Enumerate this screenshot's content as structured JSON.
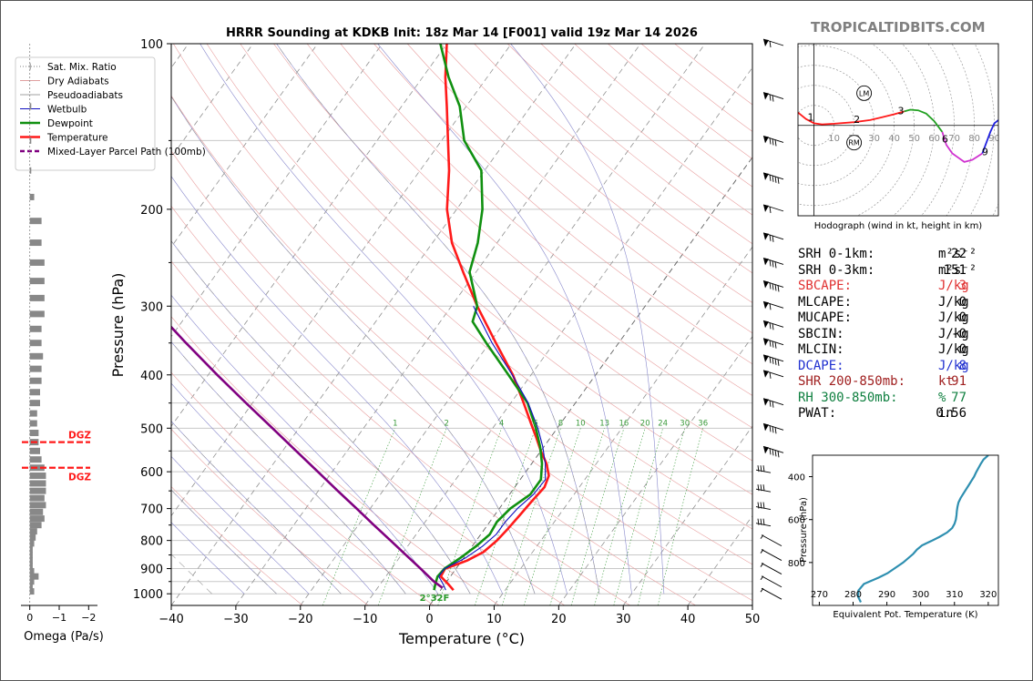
{
  "brand": "TROPICALTIDBITS.COM",
  "title": "HRRR Sounding at KDKB Init: 18z Mar 14 [F001] valid 19z Mar 14 2026",
  "stats": [
    {
      "label": "SRH 0-1km:",
      "value": "22",
      "unit": "m²s⁻²",
      "color": "#000000"
    },
    {
      "label": "SRH 0-3km:",
      "value": "151",
      "unit": "m²s⁻²",
      "color": "#000000"
    },
    {
      "label": "SBCAPE:",
      "value": "3",
      "unit": "J/kg",
      "color": "#e03030"
    },
    {
      "label": "MLCAPE:",
      "value": "0",
      "unit": "J/kg",
      "color": "#000000"
    },
    {
      "label": "MUCAPE:",
      "value": "0",
      "unit": "J/kg",
      "color": "#000000"
    },
    {
      "label": "SBCIN:",
      "value": "-0",
      "unit": "J/kg",
      "color": "#000000"
    },
    {
      "label": "MLCIN:",
      "value": "0",
      "unit": "J/kg",
      "color": "#000000"
    },
    {
      "label": "DCAPE:",
      "value": "8",
      "unit": "J/kg",
      "color": "#2030d0"
    },
    {
      "label": "SHR 200-850mb:",
      "value": "91",
      "unit": "kt",
      "color": "#a02020"
    },
    {
      "label": "RH 300-850mb:",
      "value": "77",
      "unit": "%",
      "color": "#108040"
    },
    {
      "label": "PWAT:",
      "value": "0.56",
      "unit": "in",
      "color": "#000000"
    }
  ],
  "chart_data": [
    {
      "type": "line",
      "name_id": "skewt",
      "title": "HRRR Sounding at KDKB Init: 18z Mar 14 [F001] valid 19z Mar 14 2026",
      "xlabel": "Temperature (°C)",
      "ylabel": "Pressure (hPa)",
      "xlim": [
        -40,
        50
      ],
      "ylim": [
        1050,
        100
      ],
      "x_ticks": [
        -40,
        -30,
        -20,
        -10,
        0,
        10,
        20,
        30,
        40,
        50
      ],
      "y_ticks": [
        1000,
        900,
        800,
        700,
        600,
        500,
        400,
        300,
        200,
        100
      ],
      "y_scale": "log",
      "grid": true,
      "legend_position": "top-left",
      "legend": [
        {
          "name": "Sat. Mix. Ratio",
          "color": "#808080",
          "style": "dotted"
        },
        {
          "name": "Dry Adiabats",
          "color": "#e0a0a0",
          "style": "solid"
        },
        {
          "name": "Pseudoadiabats",
          "color": "#a0a0a0",
          "style": "solid"
        },
        {
          "name": "Wetbulb",
          "color": "#1010c0",
          "style": "solid"
        },
        {
          "name": "Dewpoint",
          "color": "#109010",
          "style": "solid"
        },
        {
          "name": "Temperature",
          "color": "#ff1a1a",
          "style": "solid"
        },
        {
          "name": "Mixed-Layer Parcel Path (100mb)",
          "color": "#800080",
          "style": "dashed"
        }
      ],
      "mixing_ratio_labels": [
        "1",
        "2",
        "4",
        "6",
        "8",
        "10",
        "13",
        "16",
        "20",
        "24",
        "30",
        "36"
      ],
      "surface_label": "2°32F",
      "series": [
        {
          "name": "Temperature",
          "color": "#ff1a1a",
          "p": [
            985,
            960,
            930,
            900,
            870,
            840,
            800,
            760,
            720,
            680,
            640,
            610,
            580,
            550,
            520,
            490,
            450,
            400,
            350,
            300,
            260,
            230,
            200,
            170,
            150,
            130,
            115,
            100
          ],
          "t": [
            2,
            0.5,
            -1.5,
            -1.7,
            0.8,
            2.4,
            3.2,
            3.6,
            3.9,
            4.2,
            4.6,
            4,
            2.3,
            0,
            -2.2,
            -4.6,
            -8,
            -12.8,
            -19,
            -26,
            -32,
            -37,
            -41.5,
            -45.5,
            -49,
            -53,
            -56.5,
            -60
          ]
        },
        {
          "name": "Dewpoint",
          "color": "#109010",
          "p": [
            985,
            960,
            930,
            900,
            860,
            820,
            780,
            740,
            700,
            660,
            620,
            580,
            540,
            500,
            450,
            400,
            350,
            320,
            300,
            260,
            230,
            200,
            170,
            150,
            130,
            115,
            100
          ],
          "t": [
            -1,
            -1.5,
            -2,
            -1.8,
            -0.5,
            0.6,
            1.4,
            1.1,
            1.7,
            3.2,
            3.2,
            1.6,
            -0.6,
            -3.3,
            -7.4,
            -13.5,
            -20.5,
            -25,
            -26,
            -31,
            -33,
            -36,
            -40.5,
            -46.5,
            -51,
            -56,
            -61
          ]
        },
        {
          "name": "Wetbulb",
          "color": "#1010c0",
          "p": [
            985,
            960,
            930,
            900,
            860,
            820,
            780,
            740,
            700,
            660,
            620,
            580,
            540,
            500,
            450,
            400,
            350,
            300
          ],
          "t": [
            0.8,
            -0.3,
            -1.8,
            -1.8,
            0.3,
            1.6,
            2.4,
            2.4,
            2.8,
            3.7,
            3.9,
            2.1,
            -0.2,
            -3,
            -7.3,
            -12.9,
            -19.6,
            -26.6
          ]
        },
        {
          "name": "Mixed-Layer Parcel Path (100mb)",
          "color": "#800080",
          "p": [
            975,
            950,
            900,
            850,
            800,
            750,
            700,
            650,
            600,
            550,
            500,
            450,
            400,
            350,
            300
          ],
          "t": [
            0,
            -2,
            -5.5,
            -9.3,
            -13.3,
            -17.6,
            -22.1,
            -27,
            -32.2,
            -37.9,
            -44.1,
            -51,
            -58.6,
            -67,
            -76.4
          ]
        }
      ]
    },
    {
      "type": "bar",
      "name_id": "omega",
      "title": "",
      "xlabel": "Omega (Pa/s)",
      "ylabel": "",
      "xlim": [
        0.3,
        -2.3
      ],
      "x_ticks": [
        0,
        -1,
        -2
      ],
      "annotations": [
        {
          "text": "DGZ",
          "p": 530
        },
        {
          "text": "DGZ",
          "p": 590
        }
      ],
      "p": [
        990,
        970,
        950,
        930,
        910,
        890,
        870,
        850,
        830,
        810,
        790,
        770,
        750,
        730,
        710,
        690,
        670,
        650,
        630,
        610,
        590,
        570,
        550,
        530,
        510,
        490,
        470,
        450,
        430,
        410,
        390,
        370,
        350,
        330,
        310,
        290,
        270,
        250,
        230,
        210,
        190,
        170,
        150,
        130,
        110
      ],
      "values": [
        -0.15,
        -0.1,
        -0.15,
        -0.3,
        -0.15,
        -0.1,
        -0.1,
        -0.1,
        -0.1,
        -0.15,
        -0.2,
        -0.25,
        -0.4,
        -0.5,
        -0.45,
        -0.55,
        -0.5,
        -0.55,
        -0.55,
        -0.55,
        -0.5,
        -0.4,
        -0.35,
        -0.3,
        -0.3,
        -0.25,
        -0.25,
        -0.35,
        -0.35,
        -0.4,
        -0.4,
        -0.45,
        -0.4,
        -0.4,
        -0.5,
        -0.5,
        -0.5,
        -0.5,
        -0.4,
        -0.4,
        -0.15,
        -0.05,
        -0.05,
        -0.05,
        -0.02
      ]
    },
    {
      "type": "line",
      "name_id": "hodograph",
      "title": "",
      "xlabel": "Hodograph (wind in kt, height in km)",
      "ylabel": "",
      "xlim": [
        -8,
        92
      ],
      "ylim": [
        -42,
        38
      ],
      "ring_labels": [
        "10",
        "20",
        "30",
        "40",
        "50",
        "60",
        "70",
        "80",
        "90"
      ],
      "height_labels": [
        {
          "text": "1",
          "u": -3,
          "v": 3
        },
        {
          "text": "2",
          "u": 20,
          "v": 2
        },
        {
          "text": "3",
          "u": 42,
          "v": 6
        },
        {
          "text": "6",
          "u": 64,
          "v": -7
        },
        {
          "text": "9",
          "u": 84,
          "v": -13
        }
      ],
      "markers": [
        {
          "text": "LM",
          "u": 25,
          "v": 15
        },
        {
          "text": "RM",
          "u": 20,
          "v": -8
        }
      ],
      "segments": [
        {
          "color": "#ff1a1a",
          "u": [
            -8,
            -4,
            0,
            4,
            10,
            20,
            28,
            34,
            40,
            45
          ],
          "v": [
            6,
            3,
            1,
            0.5,
            0.8,
            1.5,
            2.5,
            3.8,
            5.2,
            6.5
          ]
        },
        {
          "color": "#22a022",
          "u": [
            45,
            48,
            52,
            56,
            60,
            64
          ],
          "v": [
            6.5,
            7.3,
            7,
            5.5,
            2,
            -3
          ]
        },
        {
          "color": "#d030d0",
          "u": [
            64,
            66,
            69,
            72,
            75,
            79,
            84
          ],
          "v": [
            -3,
            -9,
            -13,
            -15,
            -17,
            -16,
            -13
          ]
        },
        {
          "color": "#2020e0",
          "u": [
            84,
            86,
            88,
            90,
            92
          ],
          "v": [
            -13,
            -8,
            -3,
            1,
            2.5
          ]
        }
      ]
    },
    {
      "type": "line",
      "name_id": "theta_e",
      "title": "",
      "xlabel": "Equivalent Pot. Temperature (K)",
      "ylabel": "Pressure (hPa)",
      "xlim": [
        268,
        323
      ],
      "ylim": [
        1000,
        300
      ],
      "x_ticks": [
        270,
        280,
        290,
        300,
        310,
        320
      ],
      "y_ticks": [
        400,
        600,
        800
      ],
      "series": [
        {
          "name": "theta-e",
          "color": "#2e8fb0",
          "p": [
            985,
            960,
            930,
            900,
            870,
            850,
            800,
            760,
            740,
            720,
            700,
            680,
            660,
            640,
            620,
            600,
            580,
            560,
            540,
            520,
            500,
            480,
            460,
            440,
            420,
            400,
            380,
            360,
            340,
            320,
            300
          ],
          "t": [
            282.3,
            281.5,
            281.6,
            283.2,
            287.6,
            290.2,
            294.8,
            297.8,
            298.9,
            300.4,
            303.1,
            305.6,
            307.8,
            309.3,
            310,
            310.4,
            310.6,
            310.7,
            310.9,
            311.2,
            311.8,
            312.6,
            313.4,
            314.2,
            315,
            315.8,
            316.4,
            317.1,
            317.8,
            318.6,
            320
          ]
        }
      ]
    }
  ]
}
